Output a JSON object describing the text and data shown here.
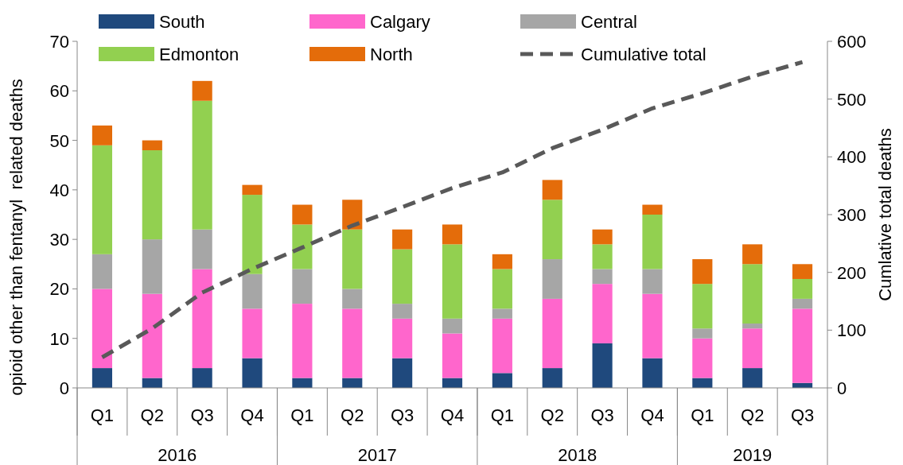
{
  "chart_data": {
    "type": "bar",
    "stacked": true,
    "ylabel": "opioid other than fentanyl  related deaths",
    "y2label": "Cumlative total deaths",
    "categories": [
      "Q1",
      "Q2",
      "Q3",
      "Q4",
      "Q1",
      "Q2",
      "Q3",
      "Q4",
      "Q1",
      "Q2",
      "Q3",
      "Q4",
      "Q1",
      "Q2",
      "Q3"
    ],
    "annotations": [
      {
        "text": "2016"
      },
      {
        "text": "2017"
      },
      {
        "text": "2018"
      },
      {
        "text": "2019"
      }
    ],
    "ylim": [
      0,
      70
    ],
    "yticks": [
      0,
      10,
      20,
      30,
      40,
      50,
      60,
      70
    ],
    "y2lim": [
      0,
      600
    ],
    "y2ticks": [
      0,
      100,
      200,
      300,
      400,
      500,
      600
    ],
    "legend": "top",
    "grid": false,
    "series": [
      {
        "name": "South",
        "color": "#1f497d",
        "values": [
          4,
          2,
          4,
          6,
          2,
          2,
          6,
          2,
          3,
          4,
          9,
          6,
          2,
          4,
          1
        ]
      },
      {
        "name": "Calgary",
        "color": "#ff66cc",
        "values": [
          16,
          17,
          20,
          10,
          15,
          14,
          8,
          9,
          11,
          14,
          12,
          13,
          8,
          8,
          15
        ]
      },
      {
        "name": "Central",
        "color": "#a6a6a6",
        "values": [
          7,
          11,
          8,
          7,
          7,
          4,
          3,
          3,
          2,
          8,
          3,
          5,
          2,
          1,
          2
        ]
      },
      {
        "name": "Edmonton",
        "color": "#92d050",
        "values": [
          22,
          18,
          26,
          16,
          9,
          12,
          11,
          15,
          8,
          12,
          5,
          11,
          9,
          12,
          4
        ]
      },
      {
        "name": "North",
        "color": "#e46c0a",
        "values": [
          4,
          2,
          4,
          2,
          4,
          6,
          4,
          4,
          3,
          4,
          3,
          2,
          5,
          4,
          3
        ]
      },
      {
        "name": "Cumulative total",
        "type": "line",
        "axis": "y2",
        "line_style": "dashed",
        "marker": "none",
        "color": "#595959",
        "values": [
          53,
          103,
          165,
          206,
          243,
          281,
          313,
          346,
          373,
          415,
          447,
          484,
          510,
          539,
          564
        ]
      }
    ]
  }
}
